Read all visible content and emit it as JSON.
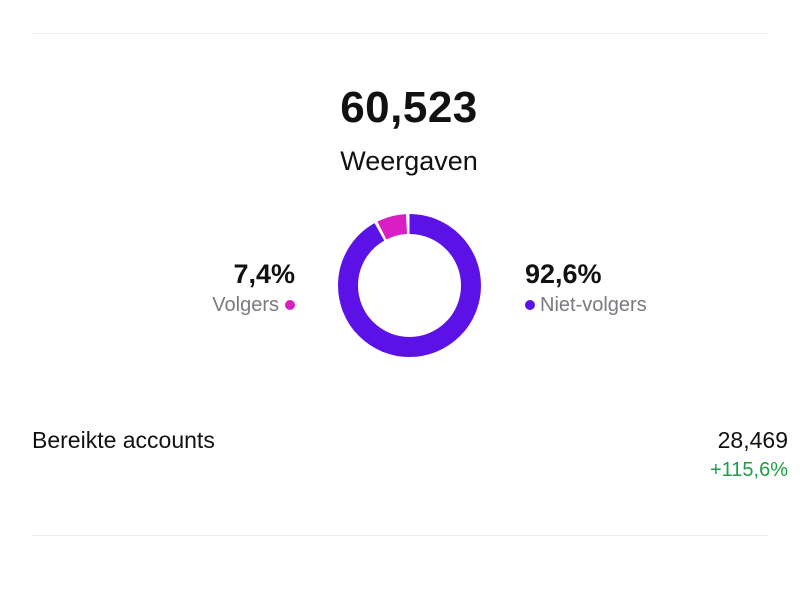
{
  "views": {
    "total": "60,523",
    "label": "Weergaven"
  },
  "breakdown": {
    "followers": {
      "percent": "7,4%",
      "label": "Volgers",
      "value": 7.4,
      "color": "#d91ec3"
    },
    "non_followers": {
      "percent": "92,6%",
      "label": "Niet-volgers",
      "value": 92.6,
      "color": "#5c12e6"
    }
  },
  "accounts_reached": {
    "label": "Bereikte accounts",
    "value": "28,469",
    "change": "+115,6%",
    "change_color": "#1f9d48"
  }
}
